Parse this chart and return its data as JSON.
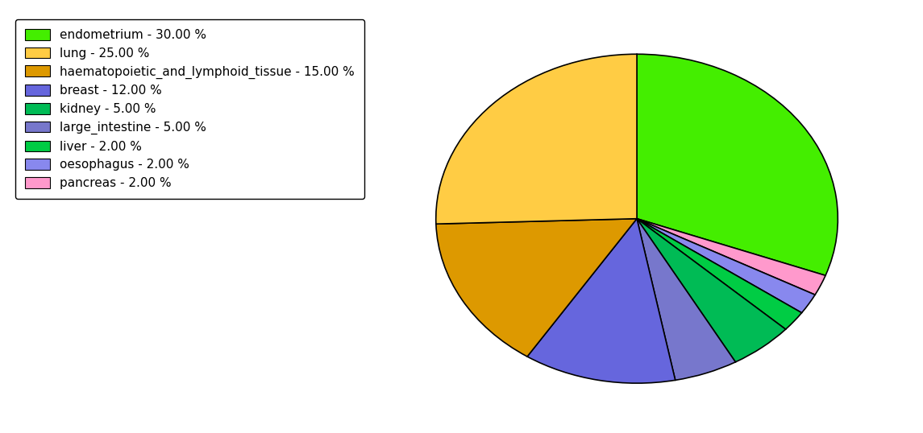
{
  "labels": [
    "endometrium",
    "lung",
    "haematopoietic_and_lymphoid_tissue",
    "breast",
    "kidney",
    "large_intestine",
    "liver",
    "oesophagus",
    "pancreas"
  ],
  "values": [
    30.0,
    25.0,
    15.0,
    12.0,
    5.0,
    5.0,
    2.0,
    2.0,
    2.0
  ],
  "colors": [
    "#44ee00",
    "#ffcc44",
    "#dd9900",
    "#6666dd",
    "#00bb55",
    "#7777cc",
    "#00cc44",
    "#8888ee",
    "#ff99cc"
  ],
  "legend_labels": [
    "endometrium - 30.00 %",
    "lung - 25.00 %",
    "haematopoietic_and_lymphoid_tissue - 15.00 %",
    "breast - 12.00 %",
    "kidney - 5.00 %",
    "large_intestine - 5.00 %",
    "liver - 2.00 %",
    "oesophagus - 2.00 %",
    "pancreas - 2.00 %"
  ],
  "pie_order": [
    0,
    8,
    7,
    6,
    4,
    5,
    3,
    2,
    1
  ],
  "startangle": 90,
  "figsize": [
    11.45,
    5.38
  ],
  "dpi": 100
}
